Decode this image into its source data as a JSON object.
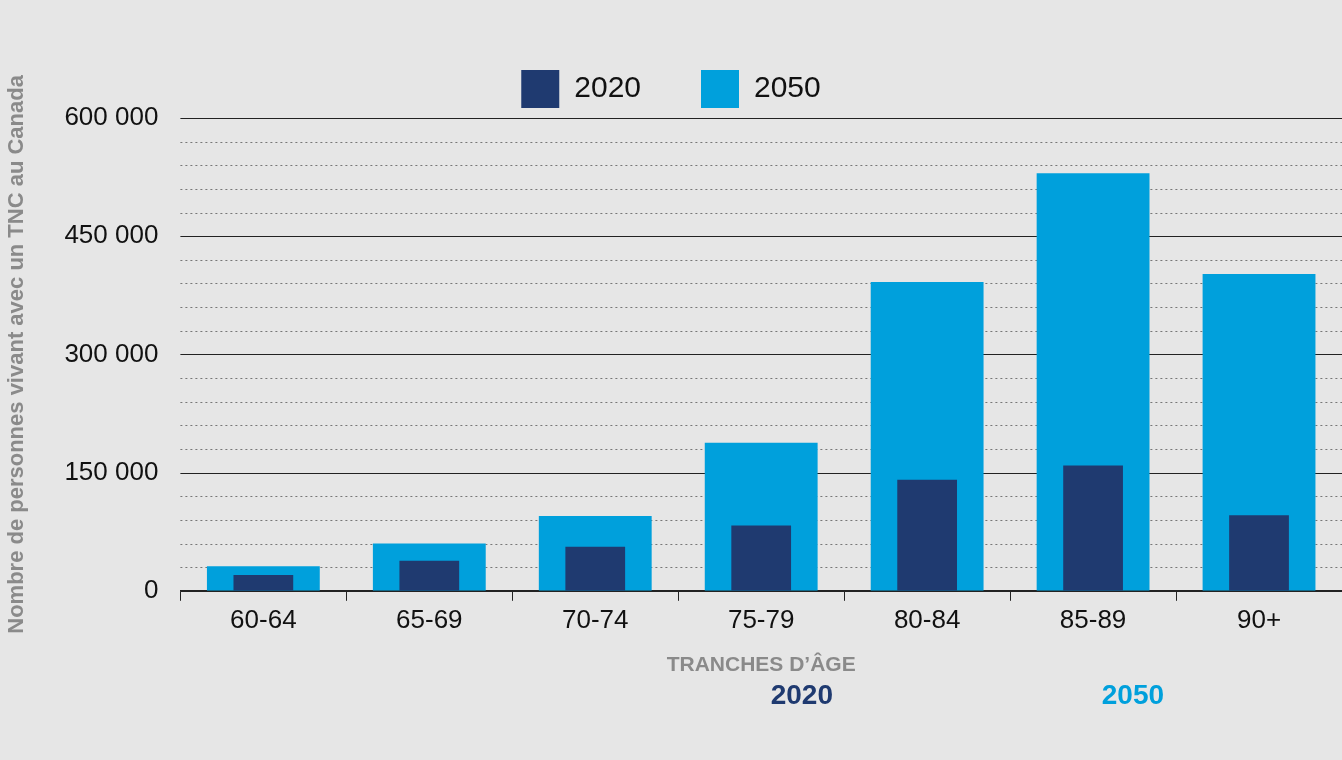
{
  "chart_data": {
    "type": "bar",
    "ylabel": "Nombre de personnes vivant avec un TNC au Canada",
    "xlabel": "TRANCHES D’ÂGE",
    "categories": [
      "60-64",
      "65-69",
      "70-74",
      "75-79",
      "80-84",
      "85-89",
      "90+"
    ],
    "series": [
      {
        "name": "2020",
        "color": "#1f3a70",
        "values": [
          20000,
          38000,
          56000,
          83000,
          141000,
          159000,
          96000
        ]
      },
      {
        "name": "2050",
        "color": "#00a0dc",
        "values": [
          31000,
          60000,
          95000,
          188000,
          392000,
          530000,
          402000
        ]
      }
    ],
    "ylim": [
      0,
      600000
    ],
    "yticks": [
      0,
      {
        "value": 30000,
        "label": null
      },
      {
        "value": 60000,
        "label": null
      },
      {
        "value": 90000,
        "label": null
      },
      {
        "value": 120000,
        "label": null
      },
      {
        "value": 150000,
        "label": "150 000"
      },
      {
        "value": 180000,
        "label": null
      },
      {
        "value": 210000,
        "label": null
      },
      {
        "value": 240000,
        "label": null
      },
      {
        "value": 270000,
        "label": null
      },
      {
        "value": 300000,
        "label": "300 000"
      },
      {
        "value": 330000,
        "label": null
      },
      {
        "value": 360000,
        "label": null
      },
      {
        "value": 390000,
        "label": null
      },
      {
        "value": 420000,
        "label": null
      },
      {
        "value": 450000,
        "label": "450 000"
      },
      {
        "value": 480000,
        "label": null
      },
      {
        "value": 510000,
        "label": null
      },
      {
        "value": 540000,
        "label": null
      },
      {
        "value": 570000,
        "label": null
      },
      {
        "value": 600000,
        "label": "600 000"
      }
    ],
    "grid": "y",
    "legend": "top",
    "annotations": [
      "2020",
      "2050"
    ]
  }
}
